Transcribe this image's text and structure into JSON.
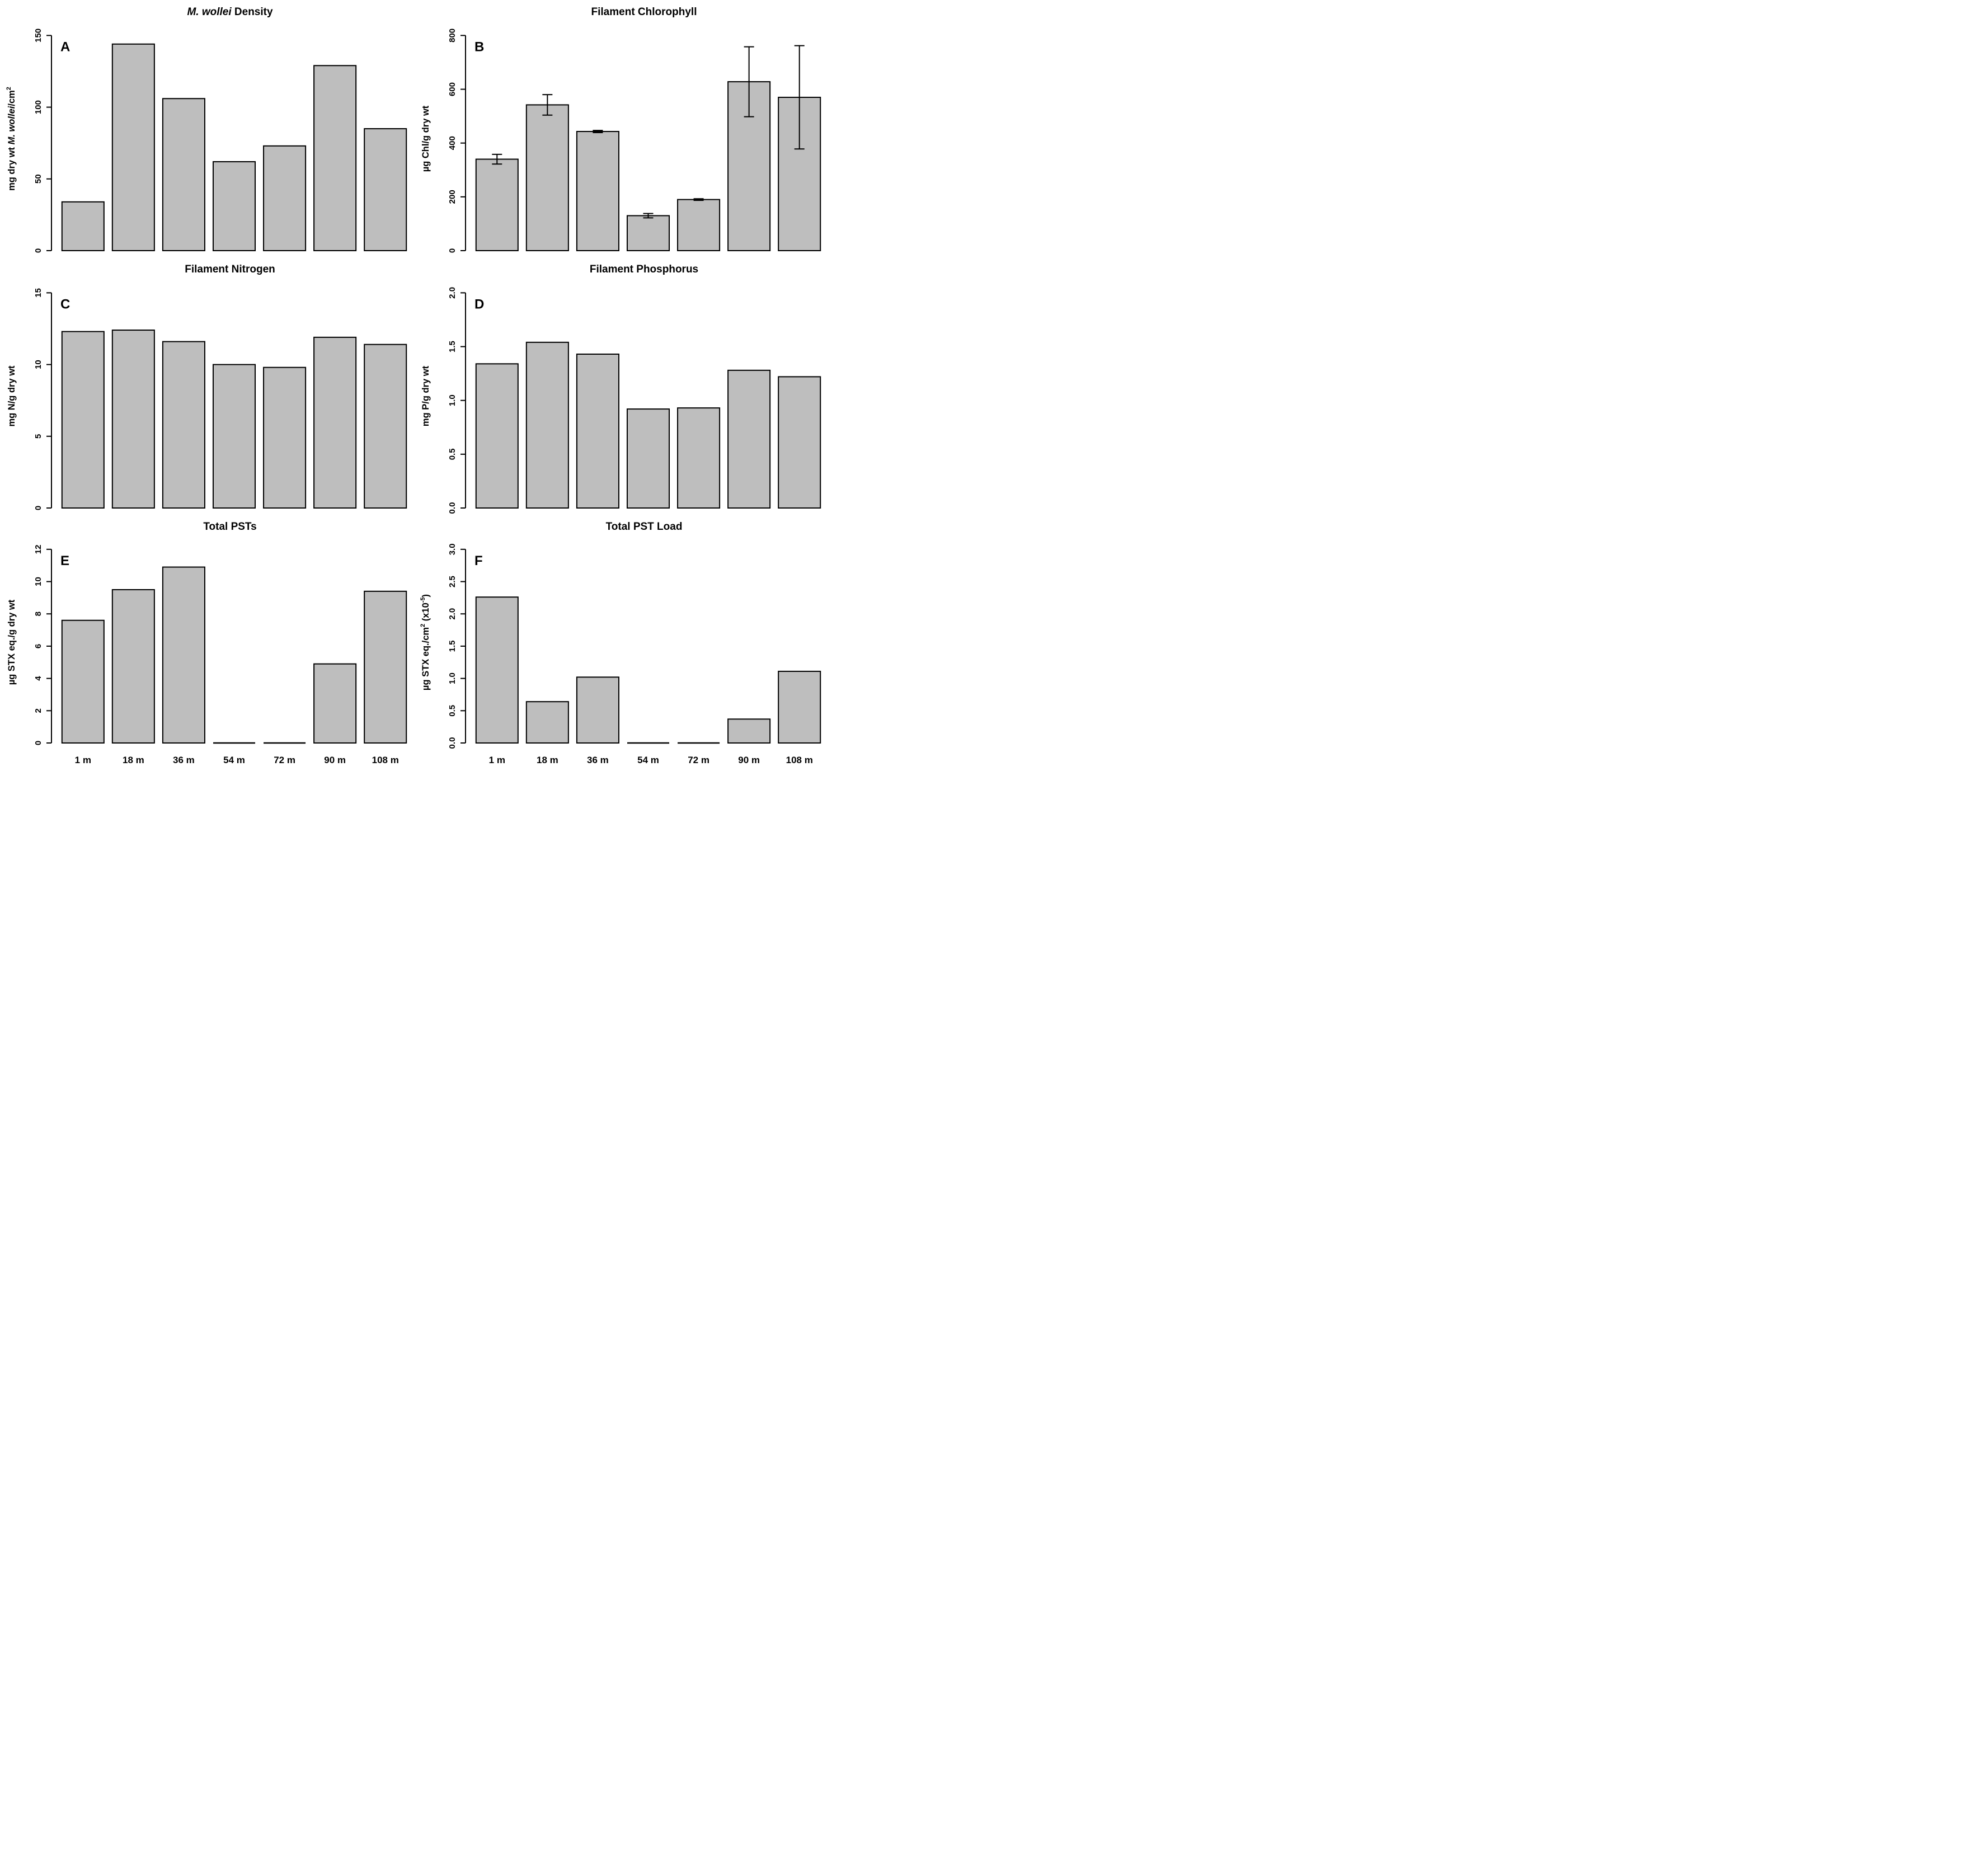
{
  "figure": {
    "background": "#ffffff",
    "text_color": "#000000",
    "bar_fill": "#bebebe",
    "bar_stroke": "#000000",
    "panel_letters": [
      "A",
      "B",
      "C",
      "D",
      "E",
      "F"
    ]
  },
  "categories": [
    "1 m",
    "18 m",
    "36 m",
    "54 m",
    "72 m",
    "90 m",
    "108 m"
  ],
  "chart_data": [
    {
      "type": "bar",
      "panel_label": "A",
      "title": "M. wollei Density",
      "title_segments": [
        {
          "text": "M. wollei",
          "italic": true
        },
        {
          "text": " Density"
        }
      ],
      "ylabel": "mg dry wt M. wollei/cm²",
      "ylabel_segments": [
        {
          "text": "mg dry wt "
        },
        {
          "text": "M. wollei",
          "italic": true
        },
        {
          "text": "/cm"
        },
        {
          "text": "2",
          "sup": true
        }
      ],
      "xlabel": "",
      "categories": [
        "1 m",
        "18 m",
        "36 m",
        "54 m",
        "72 m",
        "90 m",
        "108 m"
      ],
      "values": [
        34,
        144,
        106,
        62,
        73,
        129,
        85
      ],
      "errors": null,
      "ylim": [
        0,
        150
      ],
      "yticks": [
        {
          "value": 0,
          "label": "0"
        },
        {
          "value": 50,
          "label": "50"
        },
        {
          "value": 100,
          "label": "100"
        },
        {
          "value": 150,
          "label": "150"
        }
      ],
      "grid": false,
      "legend": false,
      "show_x_labels": false
    },
    {
      "type": "bar",
      "panel_label": "B",
      "title": "Filament Chlorophyll",
      "title_segments": [
        {
          "text": "Filament Chlorophyll"
        }
      ],
      "ylabel": "µg Chl/g dry wt",
      "ylabel_segments": [
        {
          "text": "µg Chl/g dry wt"
        }
      ],
      "xlabel": "",
      "categories": [
        "1 m",
        "18 m",
        "36 m",
        "54 m",
        "72 m",
        "90 m",
        "108 m"
      ],
      "values": [
        340,
        542,
        443,
        130,
        190,
        628,
        570
      ],
      "errors": [
        18,
        38,
        4,
        8,
        3,
        130,
        192
      ],
      "ylim": [
        0,
        800
      ],
      "yticks": [
        {
          "value": 0,
          "label": "0"
        },
        {
          "value": 200,
          "label": "200"
        },
        {
          "value": 400,
          "label": "400"
        },
        {
          "value": 600,
          "label": "600"
        },
        {
          "value": 800,
          "label": "800"
        }
      ],
      "grid": false,
      "legend": false,
      "show_x_labels": false
    },
    {
      "type": "bar",
      "panel_label": "C",
      "title": "Filament Nitrogen",
      "title_segments": [
        {
          "text": "Filament Nitrogen"
        }
      ],
      "ylabel": "mg N/g dry wt",
      "ylabel_segments": [
        {
          "text": "mg N/g dry wt"
        }
      ],
      "xlabel": "",
      "categories": [
        "1 m",
        "18 m",
        "36 m",
        "54 m",
        "72 m",
        "90 m",
        "108 m"
      ],
      "values": [
        12.3,
        12.4,
        11.6,
        10.0,
        9.8,
        11.9,
        11.4
      ],
      "errors": null,
      "ylim": [
        0,
        15
      ],
      "yticks": [
        {
          "value": 0,
          "label": "0"
        },
        {
          "value": 5,
          "label": "5"
        },
        {
          "value": 10,
          "label": "10"
        },
        {
          "value": 15,
          "label": "15"
        }
      ],
      "grid": false,
      "legend": false,
      "show_x_labels": false
    },
    {
      "type": "bar",
      "panel_label": "D",
      "title": "Filament Phosphorus",
      "title_segments": [
        {
          "text": "Filament Phosphorus"
        }
      ],
      "ylabel": "mg P/g dry wt",
      "ylabel_segments": [
        {
          "text": "mg P/g dry wt"
        }
      ],
      "xlabel": "",
      "categories": [
        "1 m",
        "18 m",
        "36 m",
        "54 m",
        "72 m",
        "90 m",
        "108 m"
      ],
      "values": [
        1.34,
        1.54,
        1.43,
        0.92,
        0.93,
        1.28,
        1.22
      ],
      "errors": null,
      "ylim": [
        0,
        2.0
      ],
      "yticks": [
        {
          "value": 0,
          "label": "0.0"
        },
        {
          "value": 0.5,
          "label": "0.5"
        },
        {
          "value": 1.0,
          "label": "1.0"
        },
        {
          "value": 1.5,
          "label": "1.5"
        },
        {
          "value": 2.0,
          "label": "2.0"
        }
      ],
      "grid": false,
      "legend": false,
      "show_x_labels": false
    },
    {
      "type": "bar",
      "panel_label": "E",
      "title": "Total PSTs",
      "title_segments": [
        {
          "text": "Total PSTs"
        }
      ],
      "ylabel": "µg STX eq./g dry wt",
      "ylabel_segments": [
        {
          "text": "µg STX eq./g dry wt"
        }
      ],
      "xlabel": "",
      "categories": [
        "1 m",
        "18 m",
        "36 m",
        "54 m",
        "72 m",
        "90 m",
        "108 m"
      ],
      "values": [
        7.6,
        9.5,
        10.9,
        0,
        0,
        4.9,
        9.4
      ],
      "errors": null,
      "ylim": [
        0,
        12
      ],
      "yticks": [
        {
          "value": 0,
          "label": "0"
        },
        {
          "value": 2,
          "label": "2"
        },
        {
          "value": 4,
          "label": "4"
        },
        {
          "value": 6,
          "label": "6"
        },
        {
          "value": 8,
          "label": "8"
        },
        {
          "value": 10,
          "label": "10"
        },
        {
          "value": 12,
          "label": "12"
        }
      ],
      "grid": false,
      "legend": false,
      "show_x_labels": true
    },
    {
      "type": "bar",
      "panel_label": "F",
      "title": "Total PST Load",
      "title_segments": [
        {
          "text": "Total PST Load"
        }
      ],
      "ylabel": "µg STX eq./cm² (x10⁻⁵)",
      "ylabel_segments": [
        {
          "text": "µg STX eq./cm"
        },
        {
          "text": "2",
          "sup": true
        },
        {
          "text": " (x10"
        },
        {
          "text": "-5",
          "sup": true
        },
        {
          "text": ")"
        }
      ],
      "xlabel": "",
      "categories": [
        "1 m",
        "18 m",
        "36 m",
        "54 m",
        "72 m",
        "90 m",
        "108 m"
      ],
      "values": [
        2.26,
        0.64,
        1.02,
        0,
        0,
        0.37,
        1.11
      ],
      "errors": null,
      "ylim": [
        0,
        3.0
      ],
      "yticks": [
        {
          "value": 0,
          "label": "0.0"
        },
        {
          "value": 0.5,
          "label": "0.5"
        },
        {
          "value": 1.0,
          "label": "1.0"
        },
        {
          "value": 1.5,
          "label": "1.5"
        },
        {
          "value": 2.0,
          "label": "2.0"
        },
        {
          "value": 2.5,
          "label": "2.5"
        },
        {
          "value": 3.0,
          "label": "3.0"
        }
      ],
      "grid": false,
      "legend": false,
      "show_x_labels": true
    }
  ]
}
